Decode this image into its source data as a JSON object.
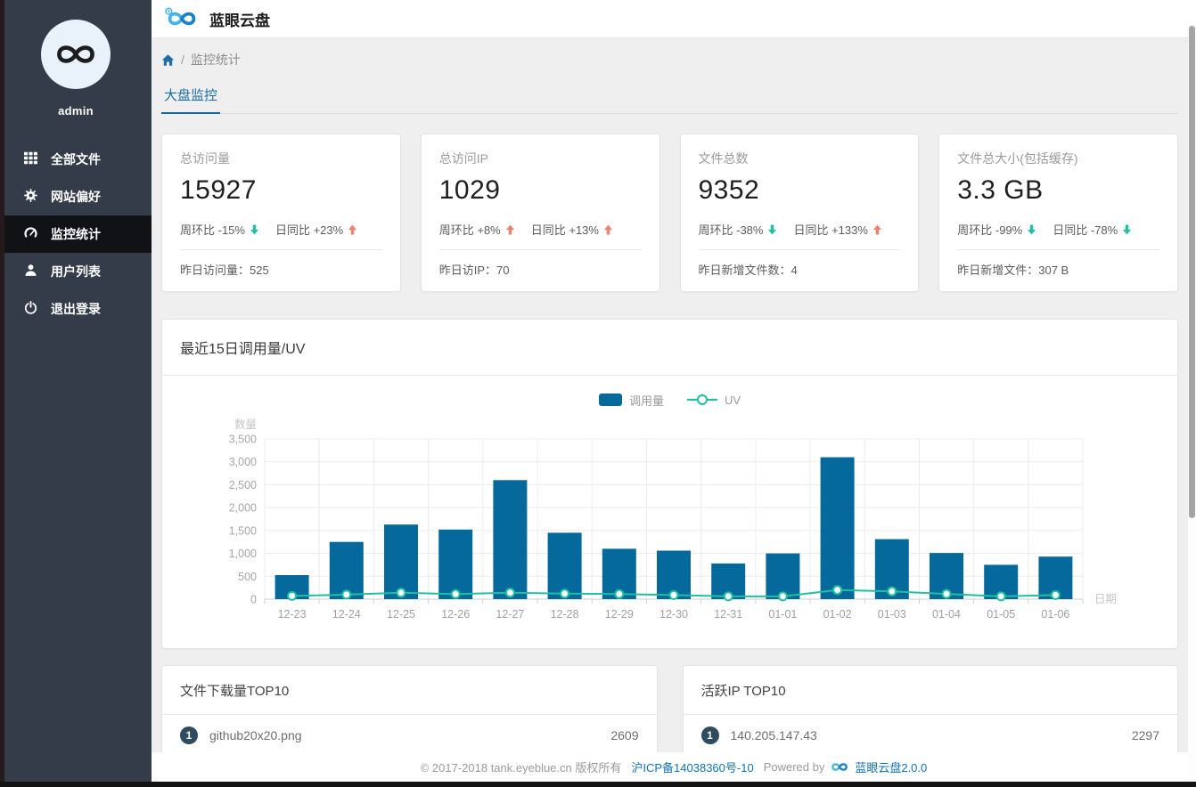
{
  "app": {
    "title": "蓝眼云盘"
  },
  "sidebar": {
    "username": "admin",
    "items": [
      {
        "id": "all-files",
        "label": "全部文件",
        "icon": "grid-icon",
        "active": false
      },
      {
        "id": "site-preference",
        "label": "网站偏好",
        "icon": "gear-icon",
        "active": false
      },
      {
        "id": "monitor-stats",
        "label": "监控统计",
        "icon": "dashboard-icon",
        "active": true
      },
      {
        "id": "user-list",
        "label": "用户列表",
        "icon": "user-icon",
        "active": false
      },
      {
        "id": "logout",
        "label": "退出登录",
        "icon": "power-icon",
        "active": false
      }
    ]
  },
  "breadcrumb": {
    "separator": "/",
    "current": "监控统计"
  },
  "tabs": [
    {
      "label": "大盘监控",
      "active": true
    }
  ],
  "stat_cards": [
    {
      "id": "total-visits",
      "label": "总访问量",
      "value": "15927",
      "metrics": [
        {
          "name": "周环比",
          "delta": "-15%",
          "direction": "down"
        },
        {
          "name": "日同比",
          "delta": "+23%",
          "direction": "up"
        }
      ],
      "footer_label": "昨日访问量：",
      "footer_value": "525"
    },
    {
      "id": "total-ips",
      "label": "总访问IP",
      "value": "1029",
      "metrics": [
        {
          "name": "周环比",
          "delta": "+8%",
          "direction": "up"
        },
        {
          "name": "日同比",
          "delta": "+13%",
          "direction": "up"
        }
      ],
      "footer_label": "昨日访IP：",
      "footer_value": "70"
    },
    {
      "id": "total-files",
      "label": "文件总数",
      "value": "9352",
      "metrics": [
        {
          "name": "周环比",
          "delta": "-38%",
          "direction": "down"
        },
        {
          "name": "日同比",
          "delta": "+133%",
          "direction": "up"
        }
      ],
      "footer_label": "昨日新增文件数：",
      "footer_value": "4"
    },
    {
      "id": "total-size",
      "label": "文件总大小(包括缓存)",
      "value": "3.3 GB",
      "metrics": [
        {
          "name": "周环比",
          "delta": "-99%",
          "direction": "down"
        },
        {
          "name": "日同比",
          "delta": "-78%",
          "direction": "down"
        }
      ],
      "footer_label": "昨日新增文件：",
      "footer_value": "307 B"
    }
  ],
  "chart_data": {
    "type": "bar",
    "title": "最近15日调用量/UV",
    "xlabel": "日期",
    "ylabel": "数量",
    "ylim": [
      0,
      3500
    ],
    "yticks": [
      0,
      500,
      1000,
      1500,
      2000,
      2500,
      3000,
      3500
    ],
    "grid": true,
    "legend_position": "top-center",
    "categories": [
      "12-23",
      "12-24",
      "12-25",
      "12-26",
      "12-27",
      "12-28",
      "12-29",
      "12-30",
      "12-31",
      "01-01",
      "01-02",
      "01-03",
      "01-04",
      "01-05",
      "01-06"
    ],
    "series": [
      {
        "name": "调用量",
        "type": "bar",
        "color": "#056a9b",
        "values": [
          525,
          1250,
          1630,
          1520,
          2600,
          1450,
          1100,
          1060,
          780,
          1000,
          3100,
          1310,
          1010,
          750,
          930
        ]
      },
      {
        "name": "UV",
        "type": "line",
        "color": "#1fc0a0",
        "values": [
          70,
          100,
          140,
          110,
          140,
          120,
          110,
          90,
          60,
          60,
          200,
          170,
          115,
          60,
          90
        ]
      }
    ]
  },
  "top_lists": [
    {
      "id": "file-downloads-top10",
      "title": "文件下载量TOP10",
      "rows": [
        {
          "rank": "1",
          "name": "github20x20.png",
          "value": "2609"
        }
      ]
    },
    {
      "id": "active-ips-top10",
      "title": "活跃IP TOP10",
      "rows": [
        {
          "rank": "1",
          "name": "140.205.147.43",
          "value": "2297"
        }
      ]
    }
  ],
  "footer": {
    "copyright": "© 2017-2018 tank.eyeblue.cn 版权所有",
    "icp": "沪ICP备14038360号-10",
    "powered_by": "Powered by",
    "brand": "蓝眼云盘2.0.0"
  },
  "colors": {
    "accent": "#14689e",
    "bar": "#056a9b",
    "line": "#1fc0a0",
    "up_arrow": "#f4826a",
    "down_arrow": "#23bfa2",
    "sidebar_bg": "#343b49",
    "sidebar_active_bg": "#101216",
    "content_bg": "#efefef",
    "badge": "#2f4b60"
  }
}
